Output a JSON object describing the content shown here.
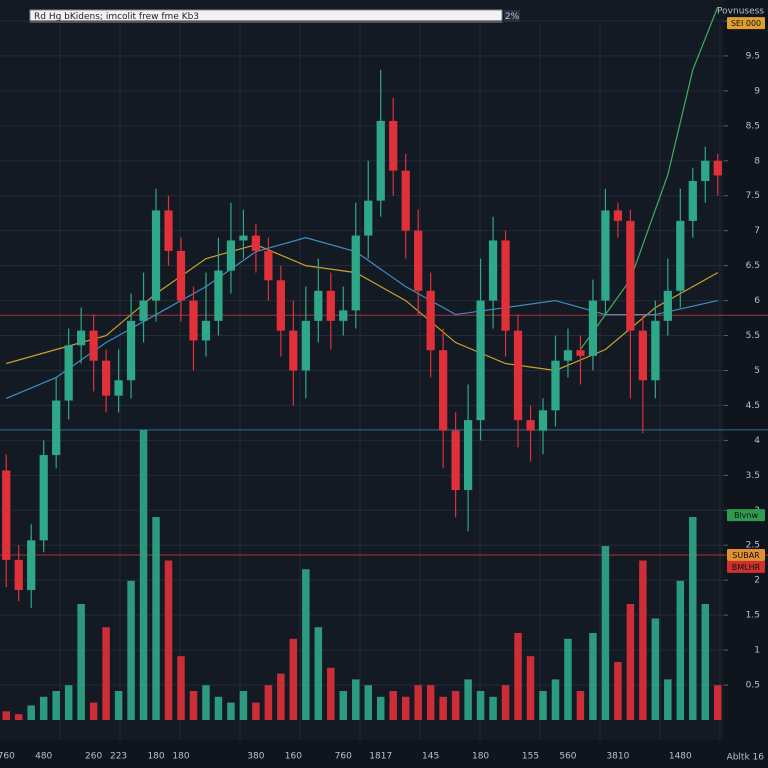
{
  "chart_data": {
    "type": "candlestick",
    "search": "Rd Hg bKidens; imcolit frew fme Kb3",
    "zoom": "2%",
    "title": "Povnusess",
    "footer": "Abltk 16",
    "grid": true,
    "up_color": "#2fa88a",
    "down_color": "#e0303a",
    "categories": [
      "760",
      null,
      null,
      "480",
      null,
      null,
      null,
      "260",
      null,
      "223",
      null,
      null,
      "180",
      null,
      "180",
      null,
      null,
      null,
      null,
      null,
      "380",
      null,
      null,
      "160",
      null,
      null,
      null,
      "760",
      null,
      null,
      "1817",
      null,
      null,
      null,
      "145",
      null,
      null,
      null,
      "180",
      null,
      null,
      null,
      "155",
      null,
      null,
      "560",
      null,
      null,
      null,
      "3810",
      null,
      null,
      null,
      null,
      "1480",
      null,
      null,
      null
    ],
    "open": [
      3.57,
      2.29,
      1.86,
      2.57,
      3.79,
      4.57,
      5.36,
      5.57,
      5.14,
      4.64,
      4.86,
      5.71,
      6.0,
      7.29,
      6.71,
      6.0,
      5.43,
      5.71,
      6.43,
      6.86,
      6.93,
      6.71,
      6.29,
      5.57,
      5.0,
      5.71,
      6.14,
      5.71,
      5.86,
      6.93,
      7.43,
      8.57,
      7.86,
      7.0,
      6.14,
      5.29,
      4.14,
      3.29,
      4.29,
      6.0,
      6.86,
      5.57,
      4.29,
      4.14,
      4.43,
      5.14,
      5.29,
      5.21,
      6.0,
      7.29,
      7.14,
      5.57,
      4.86,
      5.71,
      6.14,
      7.14,
      7.71,
      8.0
    ],
    "high": [
      3.8,
      2.5,
      2.8,
      4.0,
      4.9,
      5.6,
      5.9,
      5.8,
      5.3,
      5.3,
      6.1,
      6.4,
      7.6,
      7.5,
      6.9,
      6.2,
      6.4,
      6.9,
      7.4,
      7.3,
      7.1,
      6.9,
      6.5,
      6.0,
      6.2,
      6.6,
      6.4,
      6.2,
      7.4,
      8.0,
      9.3,
      8.9,
      8.1,
      7.3,
      6.4,
      5.6,
      4.4,
      4.8,
      6.6,
      7.2,
      7.0,
      5.8,
      4.5,
      4.6,
      5.5,
      5.6,
      5.5,
      6.3,
      7.6,
      7.4,
      7.3,
      5.8,
      6.0,
      6.6,
      7.6,
      7.9,
      8.2,
      8.1
    ],
    "low": [
      1.9,
      1.7,
      1.6,
      2.4,
      3.6,
      4.3,
      5.1,
      4.7,
      4.4,
      4.4,
      4.6,
      5.4,
      5.7,
      6.5,
      5.7,
      5.0,
      5.2,
      5.5,
      6.1,
      6.6,
      6.4,
      6.0,
      5.2,
      4.5,
      4.6,
      5.4,
      5.3,
      5.5,
      5.6,
      6.6,
      7.2,
      7.5,
      6.6,
      5.8,
      4.9,
      3.6,
      2.9,
      2.7,
      4.0,
      5.6,
      5.2,
      3.9,
      3.7,
      3.8,
      4.2,
      4.9,
      4.8,
      5.0,
      5.8,
      6.9,
      4.6,
      4.1,
      4.6,
      5.5,
      5.9,
      6.9,
      7.4,
      7.5
    ],
    "close": [
      2.29,
      1.86,
      2.57,
      3.79,
      4.57,
      5.36,
      5.57,
      5.14,
      4.64,
      4.86,
      5.71,
      6.0,
      7.29,
      6.71,
      6.0,
      5.43,
      5.71,
      6.43,
      6.86,
      6.93,
      6.71,
      6.29,
      5.57,
      5.0,
      5.71,
      6.14,
      5.71,
      5.86,
      6.93,
      7.43,
      8.57,
      7.86,
      7.0,
      6.14,
      5.29,
      4.14,
      3.29,
      4.29,
      6.0,
      6.86,
      5.57,
      4.29,
      4.14,
      4.43,
      5.14,
      5.29,
      5.21,
      6.0,
      7.29,
      7.14,
      5.57,
      4.86,
      5.71,
      6.14,
      7.14,
      7.71,
      8.0,
      7.79
    ],
    "volume": [
      3,
      2,
      5,
      8,
      10,
      12,
      40,
      6,
      32,
      10,
      48,
      100,
      70,
      55,
      22,
      10,
      12,
      8,
      6,
      10,
      6,
      12,
      16,
      28,
      52,
      32,
      18,
      10,
      14,
      12,
      8,
      10,
      8,
      12,
      12,
      8,
      10,
      14,
      10,
      8,
      12,
      30,
      22,
      10,
      14,
      28,
      10,
      30,
      60,
      20,
      40,
      55,
      35,
      14,
      48,
      70,
      40,
      12
    ],
    "ylim": [
      0,
      10.3
    ],
    "yticks": [
      0.5,
      1,
      1.5,
      2,
      2.5,
      3,
      3.5,
      4,
      4.5,
      5,
      5.5,
      6,
      6.5,
      7,
      7.5,
      8,
      8.5,
      9,
      9.5,
      10
    ],
    "vlim": [
      0,
      100
    ],
    "series": [
      {
        "color": "#c9a227",
        "x": [
          0,
          4,
          8,
          12,
          16,
          20,
          24,
          28,
          32,
          36,
          40,
          44,
          48,
          52,
          57
        ],
        "values": [
          5.1,
          5.3,
          5.5,
          6.1,
          6.6,
          6.8,
          6.5,
          6.4,
          6.0,
          5.4,
          5.1,
          5.0,
          5.3,
          5.9,
          6.4
        ]
      },
      {
        "color": "#3f8fc0",
        "x": [
          0,
          4,
          8,
          12,
          16,
          20,
          24,
          28,
          32,
          36,
          40,
          44,
          48,
          52,
          57
        ],
        "values": [
          4.6,
          4.9,
          5.4,
          5.8,
          6.2,
          6.7,
          6.9,
          6.7,
          6.2,
          5.8,
          5.9,
          6.0,
          5.8,
          5.8,
          6.0
        ]
      },
      {
        "color": "#3fae5a",
        "x": [
          46,
          50,
          53,
          55,
          57
        ],
        "values": [
          5.3,
          6.3,
          7.8,
          9.3,
          10.2
        ]
      }
    ],
    "levels": [
      {
        "value": 5.79,
        "color": "#a83038"
      },
      {
        "value": 4.15,
        "color": "#2f6f8f"
      },
      {
        "value": 2.36,
        "color": "#a83038"
      }
    ],
    "badges": [
      {
        "label": "SEI 000",
        "value": 9.97,
        "color": "#e0a030"
      },
      {
        "label": "Blvnw",
        "value": 2.93,
        "color": "#2f9a50"
      },
      {
        "label": "SUBAR",
        "value": 2.36,
        "color": "#e09030"
      },
      {
        "label": "BMLHR",
        "value": 2.19,
        "color": "#d03030"
      }
    ]
  }
}
